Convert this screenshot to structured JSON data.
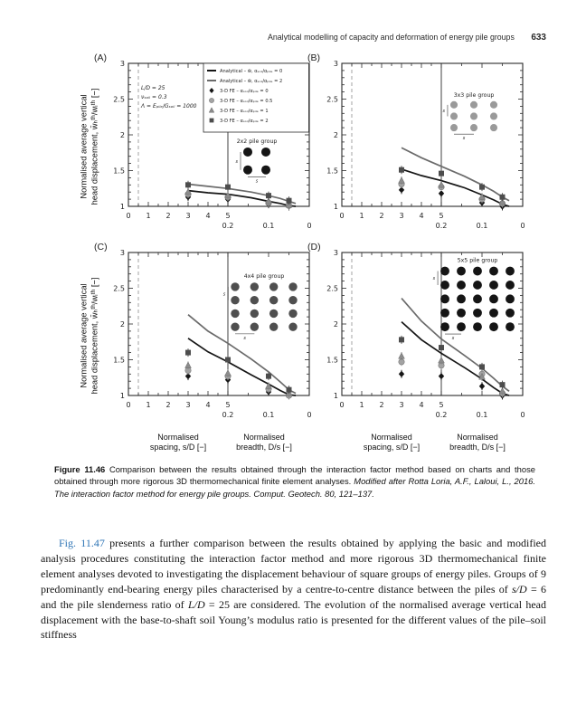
{
  "header": {
    "running_title": "Analytical modelling of capacity and deformation of energy pile groups",
    "page_number": "633"
  },
  "figure": {
    "y_axis_title_line1": "Normalised average vertical",
    "y_axis_title_line2": "head displacement, w̄ₕᵗʰ/wᵢᵗʰ [−]",
    "x_title_left1": "Normalised",
    "x_title_left2": "spacing, s/D [−]",
    "x_title_right1": "Normalised",
    "x_title_right2": "breadth, D/s [−]",
    "axes": {
      "ylim": [
        1,
        3
      ],
      "yticks": [
        1,
        1.5,
        2,
        2.5,
        3
      ],
      "xticks_sD": [
        0,
        1,
        2,
        3,
        4,
        5
      ],
      "xticks_Ds": [
        0.2,
        0.1,
        0
      ],
      "divider_sD": 5,
      "dashed_x_sD": 0.5,
      "grid": false
    },
    "params": [
      "L/D = 25",
      "νₛₒᵢₗ = 0.3",
      "Λ = Eₚᵢₗₑ/Gₛₒᵢₗ = 1000"
    ],
    "legend": [
      {
        "swatch": "line",
        "color": "#161616",
        "label": "Analytical – w̄, αₛₒᵢₗ/αₚᵢₗₑ = 0"
      },
      {
        "swatch": "line",
        "color": "#6b6b6b",
        "label": "Analytical – w̄, αₛₒᵢₗ/αₚᵢₗₑ = 2"
      },
      {
        "swatch": "diamond",
        "color": "#161616",
        "label": "3-D FE – αₛₒᵢₗ/αₚᵢₗₑ = 0"
      },
      {
        "swatch": "circle",
        "color": "#a3a3a3",
        "label": "3-D FE – αₛₒᵢₗ/αₚᵢₗₑ = 0.5"
      },
      {
        "swatch": "triangle",
        "color": "#8c8c8c",
        "label": "3-D FE – αₛₒᵢₗ/αₚᵢₗₑ = 1"
      },
      {
        "swatch": "square",
        "color": "#4d4d4d",
        "label": "3-D FE – αₛₒᵢₗ/αₚᵢₗₑ = 2"
      }
    ]
  },
  "chart_data": [
    {
      "type": "line",
      "panel": "(A)",
      "has_legend": true,
      "show_params": true,
      "inset": {
        "label": "2x2 pile group",
        "rows": 2,
        "cols": 2,
        "color": "#151515",
        "dim_label": "s",
        "box": [
          0.66,
          0.62,
          0.76,
          0.745
        ]
      },
      "lines": [
        {
          "name": "Analytical αsoil/αpile = 2",
          "color": "#6b6b6b",
          "x_sD": [
            3,
            4,
            5,
            7,
            10,
            14,
            20,
            30
          ],
          "y": [
            1.31,
            1.28,
            1.25,
            1.2,
            1.15,
            1.11,
            1.07,
            1.04
          ]
        },
        {
          "name": "Analytical αsoil/αpile = 0",
          "color": "#161616",
          "x_sD": [
            3,
            4,
            5,
            7,
            10,
            14,
            20,
            30
          ],
          "y": [
            1.22,
            1.19,
            1.17,
            1.12,
            1.07,
            1.04,
            1.01,
            1.0
          ]
        }
      ],
      "series": [
        {
          "name": "3-D FE αsoil/αpile = 0",
          "marker": "diamond",
          "color": "#161616",
          "x_sD": [
            3,
            5,
            10,
            20
          ],
          "y": [
            1.13,
            1.1,
            1.03,
            1.0
          ]
        },
        {
          "name": "3-D FE αsoil/αpile = 0.5",
          "marker": "circle",
          "color": "#a3a3a3",
          "x_sD": [
            3,
            5,
            10,
            20
          ],
          "y": [
            1.17,
            1.13,
            1.05,
            1.01
          ]
        },
        {
          "name": "3-D FE αsoil/αpile = 1",
          "marker": "triangle",
          "color": "#8c8c8c",
          "x_sD": [
            3,
            5,
            10,
            20
          ],
          "y": [
            1.2,
            1.15,
            1.07,
            1.02
          ]
        },
        {
          "name": "3-D FE αsoil/αpile = 2",
          "marker": "square",
          "color": "#4d4d4d",
          "x_sD": [
            3,
            5,
            10,
            20
          ],
          "y": [
            1.3,
            1.27,
            1.15,
            1.08
          ]
        }
      ]
    },
    {
      "type": "line",
      "panel": "(B)",
      "has_legend": false,
      "show_params": false,
      "inset": {
        "label": "3x3 pile group",
        "rows": 3,
        "cols": 3,
        "color": "#9a9a9a",
        "dim_label": "s",
        "box": [
          0.62,
          0.29,
          0.84,
          0.45
        ]
      },
      "lines": [
        {
          "name": "Analytical αsoil/αpile = 2",
          "color": "#6b6b6b",
          "x_sD": [
            3,
            4,
            5,
            7,
            10,
            14,
            20,
            30
          ],
          "y": [
            1.82,
            1.68,
            1.56,
            1.42,
            1.3,
            1.21,
            1.13,
            1.08
          ]
        },
        {
          "name": "Analytical αsoil/αpile = 0",
          "color": "#161616",
          "x_sD": [
            3,
            4,
            5,
            7,
            10,
            14,
            20,
            30
          ],
          "y": [
            1.52,
            1.43,
            1.36,
            1.26,
            1.16,
            1.09,
            1.03,
            1.0
          ]
        }
      ],
      "series": [
        {
          "name": "3-D FE αsoil/αpile = 0",
          "marker": "diamond",
          "color": "#161616",
          "x_sD": [
            3,
            5,
            10,
            20
          ],
          "y": [
            1.23,
            1.18,
            1.05,
            1.0
          ]
        },
        {
          "name": "3-D FE αsoil/αpile = 0.5",
          "marker": "circle",
          "color": "#a3a3a3",
          "x_sD": [
            3,
            5,
            10,
            20
          ],
          "y": [
            1.31,
            1.27,
            1.1,
            1.04
          ]
        },
        {
          "name": "3-D FE αsoil/αpile = 1",
          "marker": "triangle",
          "color": "#8c8c8c",
          "x_sD": [
            3,
            5,
            10,
            20
          ],
          "y": [
            1.36,
            1.3,
            1.13,
            1.06
          ]
        },
        {
          "name": "3-D FE αsoil/αpile = 2",
          "marker": "square",
          "color": "#4d4d4d",
          "x_sD": [
            3,
            5,
            10,
            20
          ],
          "y": [
            1.51,
            1.46,
            1.27,
            1.13
          ]
        }
      ]
    },
    {
      "type": "line",
      "panel": "(C)",
      "has_legend": false,
      "show_params": false,
      "inset": {
        "label": "4x4 pile group",
        "rows": 4,
        "cols": 4,
        "color": "#4f4f4f",
        "dim_label": "s",
        "box": [
          0.59,
          0.24,
          0.91,
          0.52
        ]
      },
      "lines": [
        {
          "name": "Analytical αsoil/αpile = 2",
          "color": "#6b6b6b",
          "x_sD": [
            3,
            4,
            5,
            7,
            10,
            14,
            20,
            30
          ],
          "y": [
            2.13,
            1.9,
            1.73,
            1.51,
            1.33,
            1.19,
            1.08,
            1.03
          ]
        },
        {
          "name": "Analytical αsoil/αpile = 0",
          "color": "#161616",
          "x_sD": [
            3,
            4,
            5,
            7,
            10,
            14,
            20,
            30
          ],
          "y": [
            1.8,
            1.61,
            1.47,
            1.29,
            1.16,
            1.07,
            1.01,
            1.0
          ]
        }
      ],
      "series": [
        {
          "name": "3-D FE αsoil/αpile = 0",
          "marker": "diamond",
          "color": "#161616",
          "x_sD": [
            3,
            5,
            10,
            20
          ],
          "y": [
            1.27,
            1.22,
            1.05,
            1.0
          ]
        },
        {
          "name": "3-D FE αsoil/αpile = 0.5",
          "marker": "circle",
          "color": "#a3a3a3",
          "x_sD": [
            3,
            5,
            10,
            20
          ],
          "y": [
            1.35,
            1.27,
            1.09,
            1.0
          ]
        },
        {
          "name": "3-D FE αsoil/αpile = 1",
          "marker": "triangle",
          "color": "#8c8c8c",
          "x_sD": [
            3,
            5,
            10,
            20
          ],
          "y": [
            1.42,
            1.31,
            1.13,
            1.03
          ]
        },
        {
          "name": "3-D FE αsoil/αpile = 2",
          "marker": "square",
          "color": "#4d4d4d",
          "x_sD": [
            3,
            5,
            10,
            20
          ],
          "y": [
            1.6,
            1.5,
            1.27,
            1.08
          ]
        }
      ]
    },
    {
      "type": "line",
      "panel": "(D)",
      "has_legend": false,
      "show_params": false,
      "inset": {
        "label": "5x5 pile group",
        "rows": 5,
        "cols": 5,
        "color": "#151515",
        "dim_label": "s",
        "box": [
          0.57,
          0.13,
          0.93,
          0.52
        ]
      },
      "lines": [
        {
          "name": "Analytical αsoil/αpile = 2",
          "color": "#6b6b6b",
          "x_sD": [
            3,
            4,
            5,
            7,
            10,
            14,
            20,
            30
          ],
          "y": [
            2.36,
            2.04,
            1.79,
            1.56,
            1.38,
            1.24,
            1.13,
            1.06
          ]
        },
        {
          "name": "Analytical αsoil/αpile = 0",
          "color": "#161616",
          "x_sD": [
            3,
            4,
            5,
            7,
            10,
            14,
            20,
            30
          ],
          "y": [
            2.03,
            1.78,
            1.59,
            1.39,
            1.23,
            1.11,
            1.03,
            1.0
          ]
        }
      ],
      "series": [
        {
          "name": "3-D FE αsoil/αpile = 0",
          "marker": "diamond",
          "color": "#161616",
          "x_sD": [
            3,
            5,
            10,
            20
          ],
          "y": [
            1.3,
            1.27,
            1.13,
            1.0
          ]
        },
        {
          "name": "3-D FE αsoil/αpile = 0.5",
          "marker": "circle",
          "color": "#a3a3a3",
          "x_sD": [
            3,
            5,
            10,
            20
          ],
          "y": [
            1.47,
            1.42,
            1.3,
            1.03
          ]
        },
        {
          "name": "3-D FE αsoil/αpile = 1",
          "marker": "triangle",
          "color": "#8c8c8c",
          "x_sD": [
            3,
            5,
            10,
            20
          ],
          "y": [
            1.55,
            1.49,
            1.26,
            1.06
          ]
        },
        {
          "name": "3-D FE αsoil/αpile = 2",
          "marker": "square",
          "color": "#4d4d4d",
          "x_sD": [
            3,
            5,
            10,
            20
          ],
          "y": [
            1.78,
            1.67,
            1.4,
            1.15
          ]
        }
      ]
    }
  ],
  "caption": {
    "segments": [
      {
        "t": "Figure 11.46 ",
        "s": "b"
      },
      {
        "t": "Comparison between the results obtained through the interaction factor method based on charts and those obtained through more rigorous 3D thermomechanical finite element analyses. "
      },
      {
        "t": "Modified after Rotta Loria, A.F., Laloui, L., 2016. The interaction factor method for energy pile groups. Comput. Geotech. 80, 121–137.",
        "s": "i"
      }
    ]
  },
  "body": {
    "segments": [
      {
        "t": "Fig. 11.47",
        "s": "link"
      },
      {
        "t": " presents a further comparison between the results obtained by applying the basic and modified analysis procedures constituting the interaction factor method and more rigorous 3D thermomechanical finite element analyses devoted to investigating the displacement behaviour of square groups of energy piles. Groups of 9 predominantly end-bearing energy piles characterised by a centre-to-centre distance between the piles of "
      },
      {
        "t": "s/D",
        "s": "i"
      },
      {
        "t": " = 6 and the pile slenderness ratio of "
      },
      {
        "t": "L/D",
        "s": "i"
      },
      {
        "t": " = 25 are considered. The evolution of the normalised average vertical head displacement with the base-to-shaft soil Young’s modulus ratio is presented for the different values of the pile–soil stiffness"
      }
    ]
  }
}
